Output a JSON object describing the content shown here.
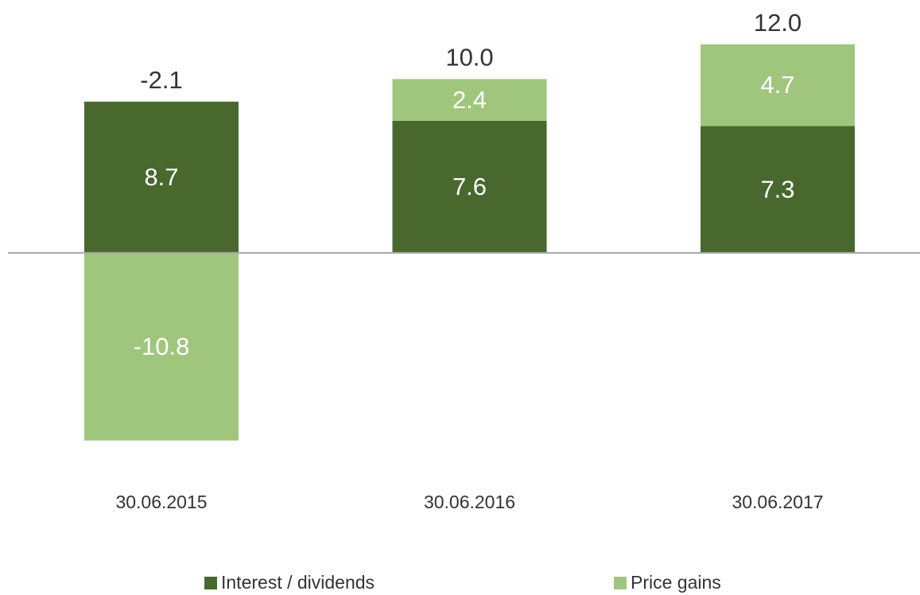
{
  "chart_data": {
    "type": "stacked_bar",
    "categories": [
      "30.06.2015",
      "30.06.2016",
      "30.06.2017"
    ],
    "series": [
      {
        "name": "Interest / dividends",
        "color": "#48682d",
        "values": [
          8.7,
          7.6,
          7.3
        ]
      },
      {
        "name": "Price gains",
        "color": "#a0c67d",
        "values": [
          -10.8,
          2.4,
          4.7
        ]
      }
    ],
    "totals": [
      -2.1,
      10,
      12
    ],
    "totals_labels": [
      "-2.1",
      "10.0",
      "12.0"
    ],
    "ylim": [
      -12,
      14
    ],
    "legend": "bottom"
  }
}
